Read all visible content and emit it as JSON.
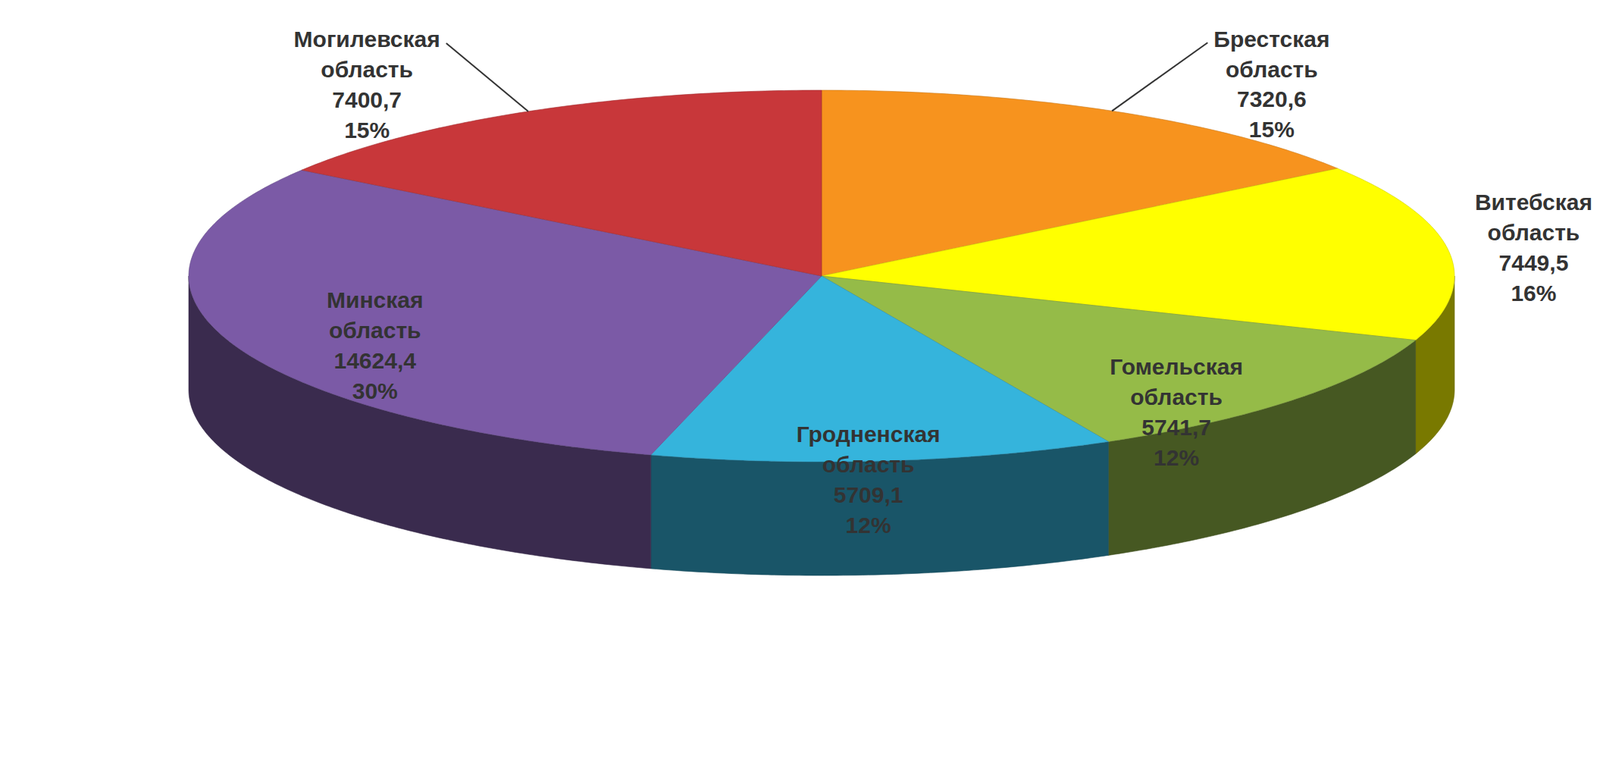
{
  "chart_data": {
    "type": "pie",
    "categories": [
      "Брестская область",
      "Витебская область",
      "Гомельская область",
      "Гродненская область",
      "Минская область",
      "Могилевская область"
    ],
    "values": [
      7320.6,
      7449.5,
      5741.7,
      5709.1,
      14624.4,
      7400.7
    ],
    "value_labels": [
      "7320,6",
      "7449,5",
      "5741,7",
      "5709,1",
      "14624,4",
      "7400,7"
    ],
    "percents": [
      15,
      16,
      12,
      12,
      30,
      15
    ],
    "percent_labels": [
      "15%",
      "16%",
      "12%",
      "12%",
      "30%",
      "15%"
    ],
    "colors": [
      "#f7931e",
      "#ffff00",
      "#95bb48",
      "#35b4dc",
      "#7b5aa6",
      "#c8373a"
    ],
    "data_labels": true
  }
}
